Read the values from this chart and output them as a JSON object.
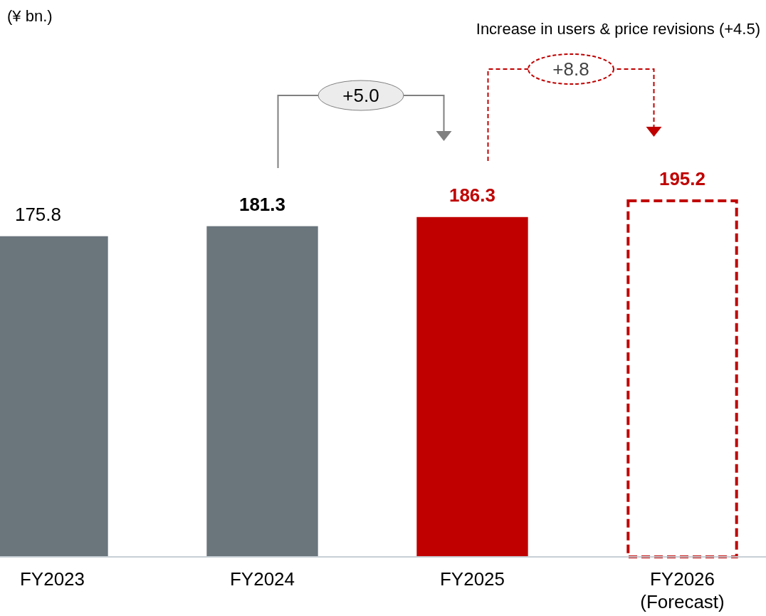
{
  "chart_data": {
    "type": "bar",
    "categories": [
      "FY2023",
      "FY2024",
      "FY2025",
      "FY2026\n(Forecast)"
    ],
    "data_labels": true,
    "series": [
      {
        "colors": [
          "#6a757c",
          "#6a757c",
          "#c00000",
          null
        ],
        "values": [
          175.8,
          181.3,
          186.3,
          null
        ]
      },
      {
        "color": "#c00000",
        "line_style": "dashed",
        "values": [
          null,
          null,
          null,
          195.2
        ]
      }
    ],
    "annotations": [
      "(¥ bn.)",
      "Increase in users & price revisions (+4.5)",
      "+5.0",
      "+8.8"
    ]
  }
}
